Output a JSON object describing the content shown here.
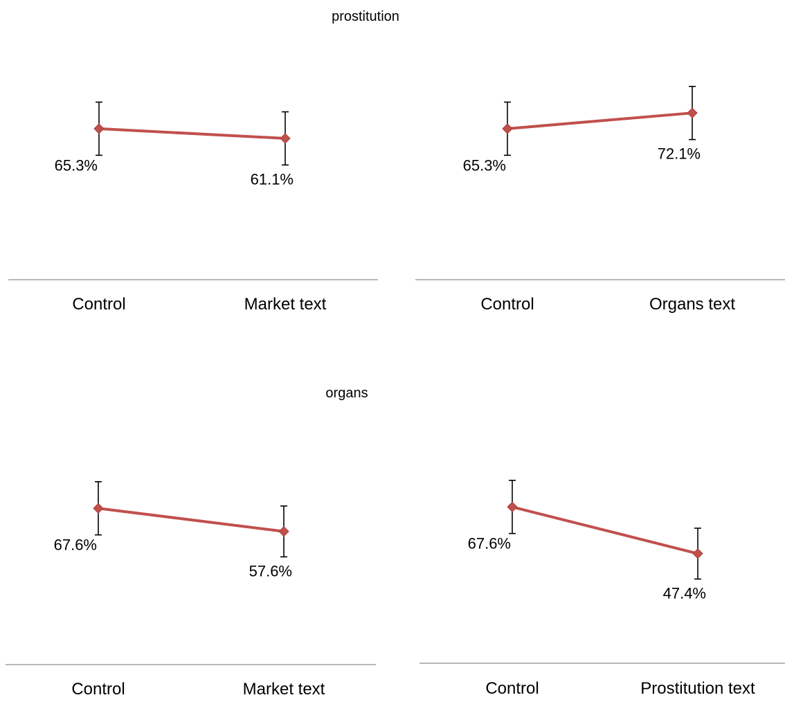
{
  "colors": {
    "series": "#c0504d",
    "axis": "#8c8c8c",
    "error_bar": "#000000",
    "background": "#ffffff"
  },
  "section_titles": [
    "prostitution",
    "organs"
  ],
  "chart_data": [
    {
      "type": "line",
      "section": "prostitution",
      "categories": [
        "Control",
        "Market text"
      ],
      "series": [
        {
          "values": [
            65.3,
            61.1
          ],
          "error": [
            11.5,
            11.5
          ],
          "labels": [
            "65.3%",
            "61.1%"
          ]
        }
      ],
      "ylim": [
        0,
        120
      ],
      "legend": "none",
      "grid": false,
      "y_axis_visible": false
    },
    {
      "type": "line",
      "section": "prostitution",
      "categories": [
        "Control",
        "Organs text"
      ],
      "series": [
        {
          "values": [
            65.3,
            72.1
          ],
          "error": [
            11.5,
            11.5
          ],
          "labels": [
            "65.3%",
            "72.1%"
          ]
        }
      ],
      "ylim": [
        0,
        120
      ],
      "legend": "none",
      "grid": false,
      "y_axis_visible": false
    },
    {
      "type": "line",
      "section": "organs",
      "categories": [
        "Control",
        "Market text"
      ],
      "series": [
        {
          "values": [
            67.6,
            57.6
          ],
          "error": [
            11.5,
            11.0
          ],
          "labels": [
            "67.6%",
            "57.6%"
          ]
        }
      ],
      "ylim": [
        0,
        120
      ],
      "legend": "none",
      "grid": false,
      "y_axis_visible": false
    },
    {
      "type": "line",
      "section": "organs",
      "categories": [
        "Control",
        "Prostitution text"
      ],
      "series": [
        {
          "values": [
            67.6,
            47.4
          ],
          "error": [
            11.5,
            11.0
          ],
          "labels": [
            "67.6%",
            "47.4%"
          ]
        }
      ],
      "ylim": [
        0,
        120
      ],
      "legend": "none",
      "grid": false,
      "y_axis_visible": false
    }
  ]
}
